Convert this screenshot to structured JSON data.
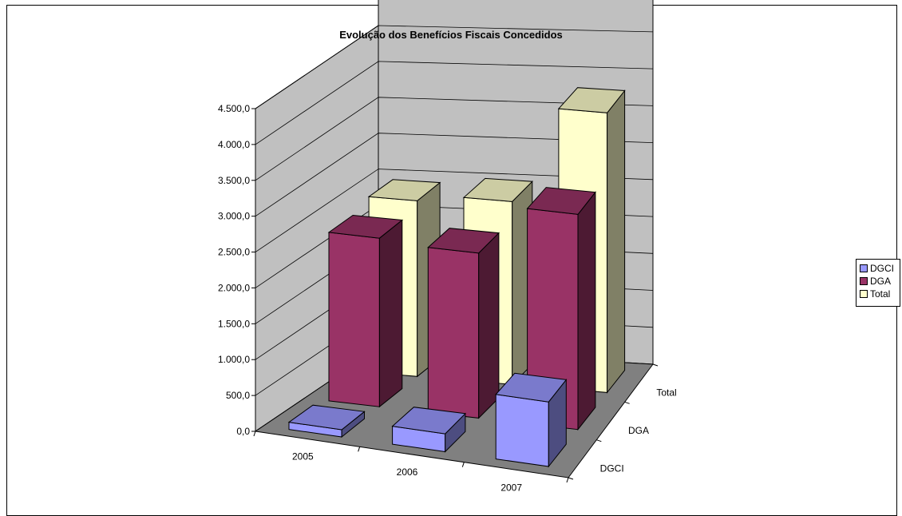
{
  "chart_data": {
    "type": "bar",
    "variant": "3d-column",
    "title": "Evolução dos Benefícios Fiscais Concedidos",
    "categories": [
      "2005",
      "2006",
      "2007"
    ],
    "series": [
      {
        "name": "DGCI",
        "values": [
          100,
          250,
          900
        ],
        "color": "#9999FF"
      },
      {
        "name": "DGA",
        "values": [
          2350,
          2300,
          3000
        ],
        "color": "#993366"
      },
      {
        "name": "Total",
        "values": [
          2450,
          2550,
          3900
        ],
        "color": "#FFFFCC"
      }
    ],
    "y_tick_labels": [
      "0,0",
      "500,0",
      "1.000,0",
      "1.500,0",
      "2.000,0",
      "2.500,0",
      "3.000,0",
      "3.500,0",
      "4.000,0",
      "4.500,0"
    ],
    "ylim": [
      0,
      4500
    ],
    "grid": true,
    "legend": "right",
    "floor_color": "#808080",
    "wall_color": "#C0C0C0"
  }
}
